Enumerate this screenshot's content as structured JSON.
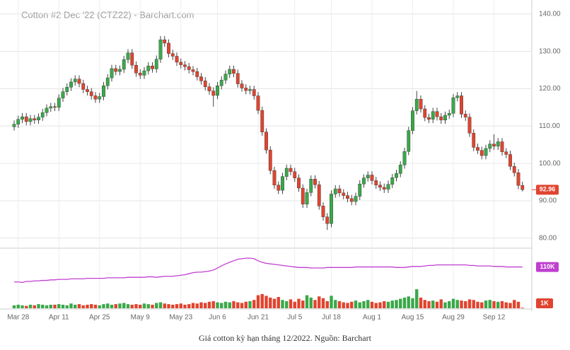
{
  "chart_data": [
    {
      "type": "candlestick",
      "title": "Cotton #2 Dec '22 (CTZ22) - Barchart.com",
      "categories": [
        null,
        "Mar 28",
        null,
        null,
        null,
        null,
        null,
        null,
        null,
        null,
        null,
        "Apr 11",
        null,
        null,
        null,
        null,
        null,
        null,
        null,
        null,
        null,
        "Apr 25",
        null,
        null,
        null,
        null,
        null,
        null,
        null,
        null,
        null,
        "May 9",
        null,
        null,
        null,
        null,
        null,
        null,
        null,
        null,
        null,
        "May 23",
        null,
        null,
        null,
        null,
        null,
        null,
        null,
        null,
        "Jun 6",
        null,
        null,
        null,
        null,
        null,
        null,
        null,
        null,
        null,
        "Jun 21",
        null,
        null,
        null,
        null,
        null,
        null,
        null,
        null,
        "Jul 5",
        null,
        null,
        null,
        null,
        null,
        null,
        null,
        null,
        "Jul 18",
        null,
        null,
        null,
        null,
        null,
        null,
        null,
        null,
        null,
        "Aug 1",
        null,
        null,
        null,
        null,
        null,
        null,
        null,
        null,
        null,
        "Aug 15",
        null,
        null,
        null,
        null,
        null,
        null,
        null,
        null,
        null,
        "Aug 29",
        null,
        null,
        null,
        null,
        null,
        null,
        null,
        null,
        null,
        "Sep 12",
        null,
        null,
        null,
        null,
        null,
        null,
        null
      ],
      "open": [
        109.8,
        110.5,
        111.8,
        112.5,
        111.2,
        112.0,
        111.6,
        112.4,
        113.6,
        114.8,
        115.2,
        115.0,
        117.5,
        119.2,
        120.4,
        121.8,
        122.6,
        121.4,
        119.8,
        119.2,
        118.1,
        117.2,
        117.9,
        120.8,
        122.9,
        125.4,
        124.6,
        125.2,
        127.8,
        129.6,
        126.3,
        124.2,
        123.6,
        124.8,
        126.1,
        125.3,
        127.9,
        133.1,
        132.2,
        129.4,
        128.7,
        127.1,
        126.4,
        125.9,
        125.1,
        124.6,
        123.2,
        122.1,
        120.5,
        119.4,
        118.2,
        120.8,
        122.3,
        123.9,
        125.2,
        124.1,
        121.3,
        120.2,
        119.5,
        119.8,
        118.1,
        114.2,
        108.4,
        103.6,
        98.1,
        94.2,
        92.8,
        96.5,
        98.7,
        97.8,
        96.1,
        93.4,
        89.1,
        92.2,
        95.8,
        94.3,
        88.6,
        85.7,
        83.9,
        91.8,
        93.2,
        92.1,
        91.4,
        90.6,
        89.8,
        91.2,
        94.5,
        96.1,
        96.9,
        95.4,
        94.2,
        93.6,
        93.1,
        94.4,
        96.2,
        97.3,
        99.6,
        103.2,
        108.8,
        114.1,
        117.2,
        114.6,
        112.3,
        111.8,
        113.9,
        112.5,
        111.6,
        112.9,
        113.4,
        117.6,
        118.1,
        113.2,
        112.4,
        108.1,
        104.3,
        103.5,
        102.1,
        104.0,
        105.2,
        104.6,
        105.8,
        103.1,
        102.4,
        99.2,
        97.5,
        94.1
      ],
      "high": [
        111.5,
        112.8,
        113.5,
        113.5,
        113.0,
        113.0,
        113.4,
        114.6,
        115.8,
        116.2,
        116.2,
        118.5,
        120.2,
        121.4,
        122.8,
        123.6,
        123.6,
        122.4,
        120.8,
        120.2,
        119.1,
        118.9,
        121.8,
        123.9,
        126.4,
        126.4,
        126.2,
        128.8,
        130.6,
        130.6,
        127.3,
        125.2,
        125.8,
        127.1,
        127.1,
        128.9,
        134.1,
        134.1,
        133.2,
        130.4,
        129.7,
        128.1,
        127.4,
        126.9,
        126.1,
        125.6,
        124.2,
        123.1,
        121.5,
        120.4,
        121.8,
        123.3,
        124.9,
        126.2,
        126.2,
        125.1,
        122.3,
        121.2,
        120.8,
        120.8,
        119.1,
        115.2,
        109.4,
        104.6,
        99.1,
        95.2,
        97.5,
        99.7,
        99.7,
        98.8,
        97.1,
        94.4,
        93.2,
        96.8,
        96.8,
        95.3,
        89.6,
        86.7,
        92.8,
        94.2,
        94.2,
        93.1,
        92.4,
        91.6,
        92.2,
        95.5,
        97.1,
        97.9,
        97.9,
        96.4,
        95.2,
        94.6,
        95.4,
        97.2,
        98.3,
        100.6,
        104.2,
        109.8,
        115.1,
        119.4,
        118.2,
        115.6,
        113.3,
        114.9,
        114.9,
        113.5,
        113.9,
        114.4,
        118.6,
        119.1,
        119.1,
        114.2,
        113.4,
        109.1,
        105.3,
        104.5,
        105.0,
        106.2,
        107.8,
        106.8,
        106.8,
        104.1,
        103.4,
        100.2,
        98.5,
        95.1
      ],
      "low": [
        108.8,
        109.5,
        110.8,
        110.2,
        110.2,
        110.6,
        110.6,
        111.4,
        112.6,
        113.8,
        114.0,
        114.0,
        116.5,
        118.2,
        119.4,
        120.8,
        120.4,
        118.8,
        118.2,
        117.1,
        116.2,
        116.2,
        116.9,
        119.8,
        121.9,
        123.6,
        123.6,
        124.2,
        126.8,
        125.3,
        123.2,
        122.6,
        122.6,
        123.8,
        124.3,
        124.3,
        126.9,
        131.2,
        128.4,
        127.7,
        126.1,
        125.4,
        124.9,
        124.1,
        123.6,
        122.2,
        121.1,
        119.5,
        118.4,
        115.2,
        117.2,
        119.8,
        121.3,
        122.9,
        123.1,
        120.3,
        119.2,
        118.5,
        118.5,
        117.1,
        113.2,
        107.4,
        102.6,
        97.1,
        93.2,
        91.8,
        91.8,
        95.5,
        96.8,
        95.1,
        92.4,
        88.1,
        88.1,
        91.2,
        93.3,
        87.6,
        84.7,
        82.2,
        82.9,
        90.8,
        91.1,
        90.4,
        89.6,
        88.8,
        88.8,
        90.2,
        93.5,
        95.1,
        94.4,
        93.2,
        92.6,
        92.1,
        92.1,
        93.4,
        95.2,
        96.3,
        98.6,
        102.2,
        107.8,
        113.1,
        113.6,
        111.3,
        110.8,
        110.8,
        111.5,
        110.6,
        110.6,
        111.9,
        112.4,
        116.6,
        112.2,
        111.4,
        107.1,
        103.3,
        102.5,
        101.1,
        101.1,
        103.0,
        103.6,
        103.6,
        102.1,
        101.4,
        98.2,
        96.5,
        93.1,
        92.5
      ],
      "close": [
        110.5,
        111.8,
        112.5,
        111.2,
        112.0,
        111.6,
        112.4,
        113.6,
        114.8,
        115.2,
        115.0,
        117.5,
        119.2,
        120.4,
        121.8,
        122.6,
        121.4,
        119.8,
        119.2,
        118.1,
        117.2,
        117.9,
        120.8,
        122.9,
        125.4,
        124.6,
        125.2,
        127.8,
        129.6,
        126.3,
        124.2,
        123.6,
        124.8,
        126.1,
        125.3,
        127.9,
        133.1,
        132.2,
        129.4,
        128.7,
        127.1,
        126.4,
        125.9,
        125.1,
        124.6,
        123.2,
        122.1,
        120.5,
        119.4,
        118.2,
        120.8,
        122.3,
        123.9,
        125.2,
        124.1,
        121.3,
        120.2,
        119.5,
        119.8,
        118.1,
        114.2,
        108.4,
        103.6,
        98.1,
        94.2,
        92.8,
        96.5,
        98.7,
        97.8,
        96.1,
        93.4,
        89.1,
        92.2,
        95.8,
        94.3,
        88.6,
        85.7,
        83.9,
        91.8,
        93.2,
        92.1,
        91.4,
        90.6,
        89.8,
        91.2,
        94.5,
        96.1,
        96.9,
        95.4,
        94.2,
        93.6,
        93.1,
        94.4,
        96.2,
        97.3,
        99.6,
        103.2,
        108.8,
        114.1,
        117.2,
        114.6,
        112.3,
        111.8,
        113.9,
        112.5,
        111.6,
        112.9,
        113.4,
        117.6,
        118.1,
        113.2,
        112.4,
        108.1,
        104.3,
        103.5,
        102.1,
        104.0,
        105.2,
        104.6,
        105.8,
        103.1,
        102.4,
        99.2,
        97.5,
        94.1,
        92.96
      ],
      "up_color": "#3aa84a",
      "down_color": "#e0442f",
      "ylim": [
        77.5,
        142.8
      ],
      "yticks": [
        {
          "value": 80,
          "label": "80.00"
        },
        {
          "value": 90,
          "label": "90.00"
        },
        {
          "value": 100,
          "label": "100.00"
        },
        {
          "value": 110,
          "label": "110.00"
        },
        {
          "value": 120,
          "label": "120.00"
        },
        {
          "value": 130,
          "label": "130.00"
        },
        {
          "value": 140,
          "label": "140.00"
        }
      ],
      "last_price": 92.96,
      "grid": true
    },
    {
      "type": "volume",
      "values": [
        5,
        6,
        5,
        4,
        6,
        5,
        7,
        6,
        5,
        6,
        6,
        7,
        6,
        5,
        8,
        6,
        7,
        5,
        6,
        7,
        6,
        5,
        7,
        8,
        6,
        7,
        8,
        9,
        7,
        6,
        7,
        6,
        8,
        7,
        6,
        9,
        10,
        8,
        7,
        6,
        7,
        8,
        6,
        7,
        9,
        8,
        10,
        9,
        11,
        12,
        10,
        9,
        11,
        10,
        12,
        10,
        9,
        11,
        12,
        14,
        22,
        24,
        21,
        18,
        16,
        19,
        14,
        12,
        15,
        11,
        16,
        13,
        22,
        18,
        14,
        20,
        17,
        12,
        21,
        14,
        12,
        10,
        9,
        11,
        13,
        10,
        12,
        14,
        11,
        9,
        10,
        12,
        11,
        13,
        14,
        16,
        18,
        20,
        17,
        32,
        18,
        14,
        12,
        13,
        11,
        15,
        10,
        12,
        16,
        14,
        13,
        12,
        15,
        14,
        11,
        10,
        13,
        14,
        12,
        11,
        12,
        10,
        9,
        14,
        11,
        1
      ],
      "ylim": [
        0,
        100
      ],
      "last": {
        "value": 1,
        "label": "1K"
      },
      "open_interest": {
        "color": "#c03fd0",
        "ylim": [
          30,
          145
        ],
        "values": [
          81,
          81,
          80,
          82,
          82,
          83,
          83,
          84,
          84,
          85,
          85,
          86,
          86,
          86,
          87,
          87,
          87,
          87,
          88,
          88,
          88,
          88,
          88,
          89,
          89,
          89,
          89,
          89,
          90,
          90,
          90,
          90,
          90,
          91,
          91,
          90,
          91,
          92,
          92,
          92,
          93,
          94,
          95,
          97,
          99,
          100,
          100,
          101,
          102,
          104,
          108,
          112,
          116,
          119,
          122,
          125,
          126,
          127,
          127,
          126,
          122,
          119,
          117,
          116,
          115,
          114,
          113,
          112,
          111,
          110,
          109,
          109,
          109,
          108,
          108,
          108,
          108,
          109,
          109,
          109,
          109,
          109,
          109,
          109,
          110,
          110,
          110,
          110,
          110,
          110,
          110,
          110,
          110,
          110,
          109,
          109,
          109,
          110,
          111,
          111,
          111,
          112,
          113,
          113,
          114,
          114,
          114,
          114,
          114,
          114,
          114,
          114,
          113,
          113,
          112,
          112,
          112,
          112,
          111,
          111,
          111,
          110,
          110,
          110,
          110,
          110
        ],
        "last": {
          "value": 110,
          "label": "110K"
        }
      }
    }
  ],
  "caption": "Giá cotton kỳ hạn tháng 12/2022. Nguồn: Barchart"
}
